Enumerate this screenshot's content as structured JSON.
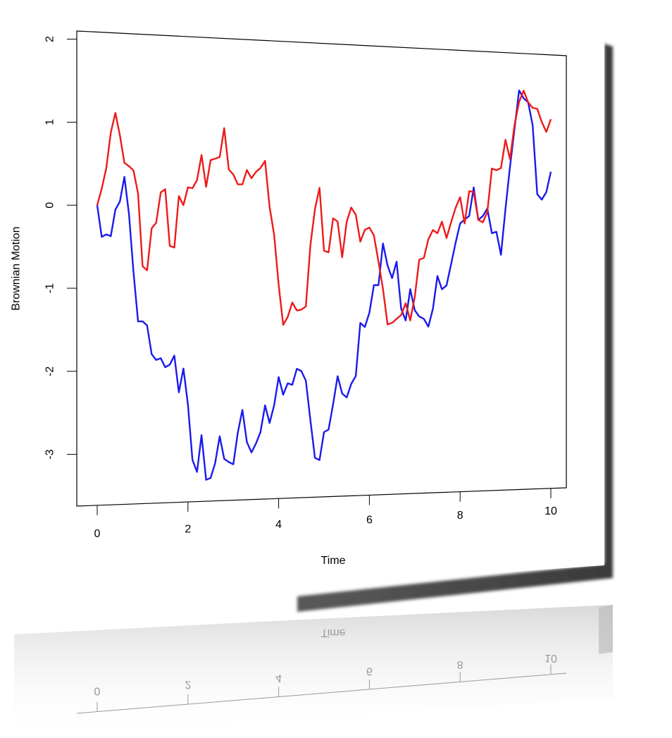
{
  "chart_data": {
    "type": "line",
    "title": "",
    "xlabel": "Time",
    "ylabel": "Brownian Motion",
    "xlim": [
      0,
      10
    ],
    "ylim": [
      -3.5,
      2
    ],
    "xticks": [
      0,
      2,
      4,
      6,
      8,
      10
    ],
    "yticks": [
      2,
      1,
      0,
      -1,
      -2,
      -3
    ],
    "grid": false,
    "legend": "none",
    "x": [
      0,
      0.1,
      0.2,
      0.3,
      0.4,
      0.5,
      0.6,
      0.7,
      0.8,
      0.9,
      1.0,
      1.1,
      1.2,
      1.3,
      1.4,
      1.5,
      1.6,
      1.7,
      1.8,
      1.9,
      2.0,
      2.1,
      2.2,
      2.3,
      2.4,
      2.5,
      2.6,
      2.7,
      2.8,
      2.9,
      3.0,
      3.1,
      3.2,
      3.3,
      3.4,
      3.5,
      3.6,
      3.7,
      3.8,
      3.9,
      4.0,
      4.1,
      4.2,
      4.3,
      4.4,
      4.5,
      4.6,
      4.7,
      4.8,
      4.9,
      5.0,
      5.1,
      5.2,
      5.3,
      5.4,
      5.5,
      5.6,
      5.7,
      5.8,
      5.9,
      6.0,
      6.1,
      6.2,
      6.3,
      6.4,
      6.5,
      6.6,
      6.7,
      6.8,
      6.9,
      7.0,
      7.1,
      7.2,
      7.3,
      7.4,
      7.5,
      7.6,
      7.7,
      7.8,
      7.9,
      8.0,
      8.1,
      8.2,
      8.3,
      8.4,
      8.5,
      8.6,
      8.7,
      8.8,
      8.9,
      9.0,
      9.1,
      9.2,
      9.3,
      9.4,
      9.5,
      9.6,
      9.7,
      9.8,
      9.9,
      10.0
    ],
    "series": [
      {
        "color": "#1a1aee",
        "values": [
          0,
          -0.38,
          -0.35,
          -0.37,
          -0.05,
          0.05,
          0.35,
          -0.1,
          -0.8,
          -1.4,
          -1.4,
          -1.45,
          -1.8,
          -1.87,
          -1.85,
          -1.96,
          -1.93,
          -1.82,
          -2.27,
          -1.98,
          -2.42,
          -3.1,
          -3.25,
          -2.8,
          -3.35,
          -3.33,
          -3.15,
          -2.82,
          -3.1,
          -3.14,
          -3.17,
          -2.78,
          -2.5,
          -2.9,
          -3.03,
          -2.92,
          -2.78,
          -2.45,
          -2.67,
          -2.45,
          -2.1,
          -2.32,
          -2.18,
          -2.2,
          -2.0,
          -2.03,
          -2.15,
          -2.65,
          -3.12,
          -3.15,
          -2.8,
          -2.77,
          -2.45,
          -2.1,
          -2.32,
          -2.37,
          -2.2,
          -2.1,
          -1.43,
          -1.48,
          -1.3,
          -0.95,
          -0.95,
          -0.42,
          -0.7,
          -0.86,
          -0.65,
          -1.25,
          -1.4,
          -1.0,
          -1.27,
          -1.35,
          -1.38,
          -1.48,
          -1.25,
          -0.83,
          -1.0,
          -0.95,
          -0.68,
          -0.4,
          -0.15,
          -0.1,
          -0.05,
          0.32,
          -0.1,
          -0.05,
          0.05,
          -0.27,
          -0.25,
          -0.55,
          0.05,
          0.6,
          1.1,
          1.6,
          1.5,
          1.45,
          1.15,
          0.25,
          0.18,
          0.28,
          0.55
        ]
      },
      {
        "color": "#ee1a1a",
        "values": [
          0,
          0.2,
          0.45,
          0.88,
          1.12,
          0.85,
          0.52,
          0.48,
          0.43,
          0.15,
          -0.73,
          -0.78,
          -0.27,
          -0.2,
          0.17,
          0.21,
          -0.48,
          -0.5,
          0.13,
          0.02,
          0.24,
          0.23,
          0.33,
          0.64,
          0.25,
          0.58,
          0.6,
          0.62,
          0.98,
          0.47,
          0.41,
          0.29,
          0.29,
          0.47,
          0.37,
          0.45,
          0.5,
          0.59,
          0.02,
          -0.33,
          -0.95,
          -1.45,
          -1.35,
          -1.17,
          -1.27,
          -1.26,
          -1.22,
          -0.45,
          0,
          0.27,
          -0.52,
          -0.54,
          -0.11,
          -0.15,
          -0.6,
          -0.15,
          0.03,
          -0.06,
          -0.4,
          -0.25,
          -0.22,
          -0.32,
          -0.65,
          -1.0,
          -1.45,
          -1.43,
          -1.38,
          -1.33,
          -1.18,
          -1.4,
          -1.1,
          -0.62,
          -0.6,
          -0.36,
          -0.24,
          -0.28,
          -0.13,
          -0.34,
          -0.14,
          0.05,
          0.19,
          -0.15,
          0.27,
          0.26,
          -0.1,
          -0.13,
          0.0,
          0.57,
          0.55,
          0.58,
          0.95,
          0.7,
          1.15,
          1.45,
          1.6,
          1.45,
          1.38,
          1.37,
          1.2,
          1.07,
          1.24
        ]
      }
    ]
  }
}
